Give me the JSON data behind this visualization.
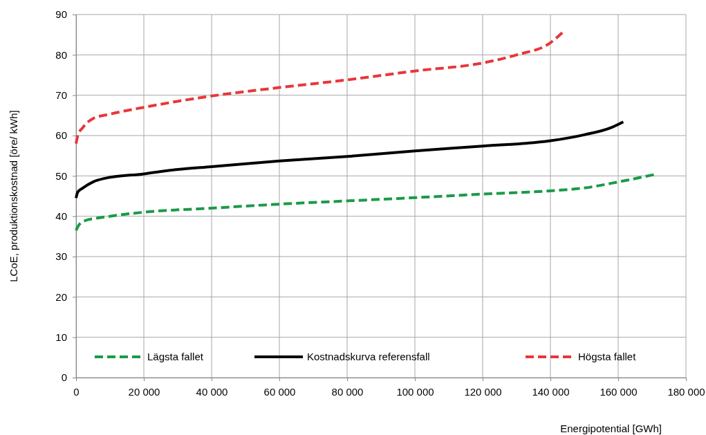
{
  "chart_data": {
    "type": "line",
    "xlabel": "Energipotential [GWh]",
    "ylabel": "LCoE, produktionskostnad [öre/ kWh]",
    "xlim": [
      0,
      180000
    ],
    "xticks": [
      0,
      {
        "value": 20000,
        "label": "20 000"
      },
      {
        "value": 40000,
        "label": "40 000"
      },
      {
        "value": 60000,
        "label": "60 000"
      },
      {
        "value": 80000,
        "label": "80 000"
      },
      {
        "value": 100000,
        "label": "100 000"
      },
      {
        "value": 120000,
        "label": "120 000"
      },
      {
        "value": 140000,
        "label": "140 000"
      },
      {
        "value": 160000,
        "label": "160 000"
      },
      {
        "value": 180000,
        "label": "180 000"
      }
    ],
    "ylim": [
      0,
      90
    ],
    "yticks": [
      0,
      10,
      20,
      30,
      40,
      50,
      60,
      70,
      80,
      90
    ],
    "grid": true,
    "legend": "bottom",
    "marker": "none",
    "series": [
      {
        "name": "Lägsta fallet",
        "color": "#1a9a48",
        "line_style": "dashed",
        "x": [
          0,
          1000,
          3000,
          6000,
          10000,
          20000,
          40000,
          60000,
          80000,
          100000,
          120000,
          140000,
          150000,
          160000,
          170500
        ],
        "values": [
          36.5,
          38,
          39,
          39.5,
          40,
          41,
          42,
          43,
          43.8,
          44.6,
          45.5,
          46.3,
          47,
          48.5,
          50.3
        ]
      },
      {
        "name": "Kostnadskurva referensfall",
        "color": "#000000",
        "line_style": "solid",
        "x": [
          0,
          500,
          2000,
          5000,
          8000,
          20000,
          30000,
          40000,
          60000,
          80000,
          100000,
          120000,
          140000,
          150000,
          158000,
          161500
        ],
        "values": [
          44.5,
          46,
          47,
          48.5,
          49.3,
          50.5,
          51.6,
          52.3,
          53.7,
          54.8,
          56.2,
          57.4,
          58.7,
          60.2,
          62,
          63.4
        ]
      },
      {
        "name": "Högsta fallet",
        "color": "#e8363a",
        "line_style": "dashed",
        "x": [
          0,
          500,
          2000,
          5000,
          10000,
          20000,
          40000,
          60000,
          80000,
          100000,
          120000,
          130000,
          140000,
          143500
        ],
        "values": [
          58,
          60,
          62,
          64.2,
          65.3,
          67,
          69.8,
          71.9,
          73.8,
          76,
          78,
          80,
          83,
          85.5
        ]
      }
    ]
  }
}
